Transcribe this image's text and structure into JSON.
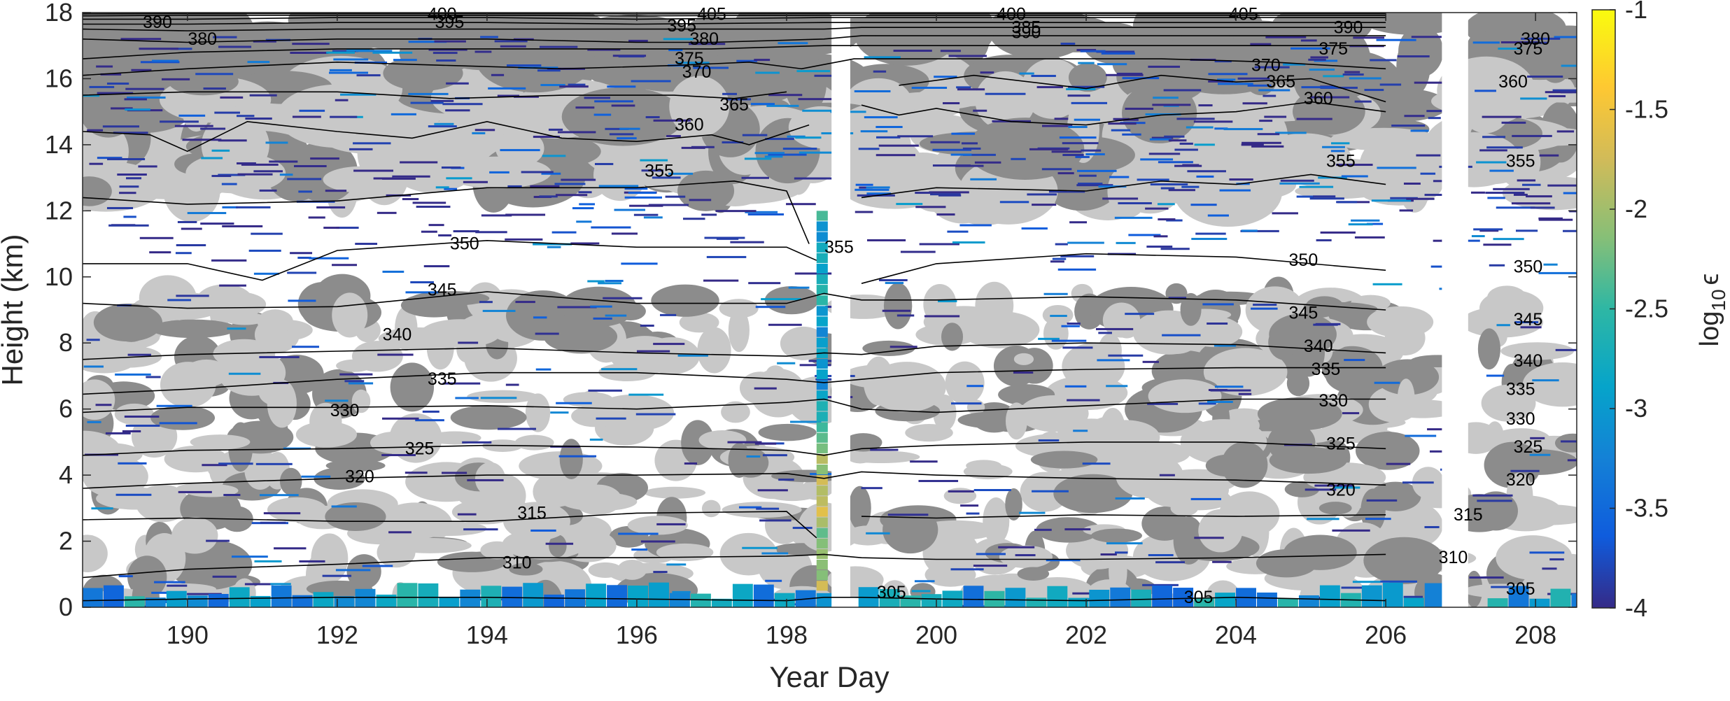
{
  "chart_data": {
    "type": "heatmap",
    "title": "",
    "xlabel": "Year Day",
    "ylabel": "Height (km)",
    "xlim": [
      188.6,
      208.55
    ],
    "ylim": [
      0,
      18
    ],
    "xticks": [
      190,
      192,
      194,
      196,
      198,
      200,
      202,
      204,
      206,
      208
    ],
    "xtick_labels": [
      "190",
      "192",
      "194",
      "196",
      "198",
      "200",
      "202",
      "204",
      "206",
      "208"
    ],
    "yticks": [
      0,
      2,
      4,
      6,
      8,
      10,
      12,
      14,
      16,
      18
    ],
    "ytick_labels": [
      "0",
      "2",
      "4",
      "6",
      "8",
      "10",
      "12",
      "14",
      "16",
      "18"
    ],
    "colorbar": {
      "label_main": "log",
      "label_sub": "10",
      "label_sym": "ϵ",
      "range": [
        -4,
        -1
      ],
      "colormap": "parula",
      "ticks": [
        -1,
        -1.5,
        -2,
        -2.5,
        -3,
        -3.5,
        -4
      ],
      "tick_labels": [
        "-1",
        "-1.5",
        "-2",
        "-2.5",
        "-3",
        "-3.5",
        "-4"
      ]
    },
    "data_gaps": [
      [
        198.6,
        198.85
      ],
      [
        206.75,
        207.1
      ]
    ],
    "cloud_shading": [
      {
        "name": "light",
        "color": "#c8c8c8"
      },
      {
        "name": "dark",
        "color": "#8c8c8c"
      }
    ],
    "contours": [
      {
        "level": 305,
        "label": "305",
        "x": [
          188.6,
          190,
          192,
          194,
          196,
          198,
          198.5,
          199,
          200,
          202,
          204,
          206,
          207,
          208.55
        ],
        "y": [
          0.2,
          0.25,
          0.3,
          0.3,
          0.25,
          0.2,
          0.3,
          0.3,
          0.25,
          0.2,
          0.3,
          0.2,
          0.25,
          0.25
        ],
        "labels_at": [
          [
            199.4,
            0.45
          ],
          [
            203.5,
            0.3
          ],
          [
            207.8,
            0.55
          ]
        ]
      },
      {
        "level": 310,
        "label": "310",
        "x": [
          188.6,
          190,
          192,
          194,
          196,
          198,
          198.5,
          199,
          200,
          202,
          204,
          206,
          207,
          208.55
        ],
        "y": [
          0.9,
          1.15,
          1.3,
          1.5,
          1.5,
          1.55,
          1.6,
          1.5,
          1.45,
          1.45,
          1.5,
          1.6,
          1.3,
          1.85
        ],
        "labels_at": [
          [
            194.4,
            1.35
          ],
          [
            206.9,
            1.5
          ]
        ]
      },
      {
        "level": 315,
        "label": "315",
        "x": [
          188.6,
          190,
          192,
          194,
          196,
          198,
          198.4,
          198.6,
          199,
          200,
          202,
          204,
          206,
          207,
          208.55
        ],
        "y": [
          2.65,
          2.7,
          2.6,
          2.6,
          2.85,
          2.9,
          2.1,
          2.8,
          2.75,
          2.7,
          2.8,
          2.75,
          2.8,
          2.6,
          2.65
        ],
        "labels_at": [
          [
            194.6,
            2.85
          ],
          [
            207.1,
            2.8
          ]
        ]
      },
      {
        "level": 320,
        "label": "320",
        "x": [
          188.6,
          190,
          192,
          194,
          196,
          198,
          198.5,
          199,
          200,
          202,
          204,
          206,
          207,
          208.55
        ],
        "y": [
          3.6,
          3.75,
          3.9,
          4.0,
          4.0,
          4.05,
          3.9,
          4.1,
          4.0,
          3.9,
          3.85,
          3.7,
          3.75,
          3.65
        ],
        "labels_at": [
          [
            192.3,
            3.95
          ],
          [
            205.4,
            3.55
          ],
          [
            207.8,
            3.85
          ]
        ]
      },
      {
        "level": 325,
        "label": "325",
        "x": [
          188.6,
          190,
          192,
          194,
          196,
          198,
          198.5,
          199,
          200,
          202,
          204,
          206,
          207,
          208.55
        ],
        "y": [
          4.6,
          4.75,
          4.8,
          4.9,
          4.85,
          4.75,
          4.6,
          4.8,
          4.9,
          5.0,
          5.0,
          4.8,
          4.6,
          4.55
        ],
        "labels_at": [
          [
            193.1,
            4.8
          ],
          [
            205.4,
            4.95
          ],
          [
            207.9,
            4.85
          ]
        ]
      },
      {
        "level": 330,
        "label": "330",
        "x": [
          188.6,
          190,
          192,
          194,
          196,
          198,
          198.5,
          199,
          200,
          202,
          204,
          206,
          207,
          208.55
        ],
        "y": [
          5.9,
          6.05,
          6.05,
          6.1,
          6.0,
          6.2,
          6.3,
          6.0,
          5.9,
          6.1,
          6.3,
          6.3,
          5.8,
          5.6
        ],
        "labels_at": [
          [
            192.1,
            5.95
          ],
          [
            205.3,
            6.25
          ],
          [
            207.8,
            5.7
          ]
        ]
      },
      {
        "level": 335,
        "label": "335",
        "x": [
          188.6,
          190,
          192,
          194,
          196,
          198,
          198.5,
          199,
          200,
          202,
          204,
          206,
          207,
          208.55
        ],
        "y": [
          6.45,
          6.6,
          6.9,
          7.1,
          7.1,
          6.9,
          6.8,
          6.9,
          7.1,
          7.2,
          7.25,
          7.25,
          6.6,
          6.7
        ],
        "labels_at": [
          [
            193.4,
            6.9
          ],
          [
            205.2,
            7.2
          ],
          [
            207.8,
            6.6
          ]
        ]
      },
      {
        "level": 340,
        "label": "340",
        "x": [
          188.6,
          190,
          192,
          194,
          196,
          198,
          198.5,
          199,
          200,
          202,
          204,
          206,
          207,
          208.55
        ],
        "y": [
          7.5,
          7.65,
          7.75,
          7.85,
          7.7,
          7.6,
          7.7,
          7.65,
          7.9,
          8.0,
          7.95,
          7.7,
          7.4,
          7.45
        ],
        "labels_at": [
          [
            192.8,
            8.25
          ],
          [
            205.1,
            7.9
          ],
          [
            207.9,
            7.45
          ]
        ]
      },
      {
        "level": 345,
        "label": "345",
        "x": [
          188.6,
          190,
          192,
          194,
          196,
          198,
          198.5,
          199,
          200,
          202,
          204,
          206,
          207,
          208.55
        ],
        "y": [
          9.2,
          9.05,
          9.1,
          9.55,
          9.2,
          9.2,
          9.5,
          9.3,
          9.3,
          9.4,
          9.3,
          9.0,
          8.6,
          8.65
        ],
        "labels_at": [
          [
            193.4,
            9.6
          ],
          [
            204.9,
            8.9
          ],
          [
            207.9,
            8.7
          ]
        ]
      },
      {
        "level": 350,
        "label": "350",
        "x": [
          188.6,
          190,
          191,
          192,
          194,
          196,
          198,
          198.4,
          198.8,
          199,
          200,
          202,
          204,
          206,
          207,
          208.55
        ],
        "y": [
          10.4,
          10.4,
          9.9,
          10.8,
          11.1,
          10.9,
          10.9,
          10.5,
          9.9,
          9.8,
          10.4,
          10.7,
          10.6,
          10.2,
          10.3,
          10.1
        ],
        "labels_at": [
          [
            193.7,
            11.0
          ],
          [
            204.9,
            10.5
          ],
          [
            207.9,
            10.3
          ]
        ]
      },
      {
        "level": 355,
        "label": "355",
        "x": [
          188.6,
          190,
          192,
          194,
          196,
          197.3,
          198.0,
          198.3,
          198.7,
          199,
          200,
          202,
          203,
          204,
          205,
          206,
          207,
          208.55
        ],
        "y": [
          12.4,
          12.2,
          12.3,
          12.7,
          12.7,
          12.9,
          12.6,
          11.0,
          10.9,
          12.4,
          12.7,
          12.6,
          12.9,
          12.8,
          13.1,
          12.8,
          12.4,
          12.3
        ],
        "labels_at": [
          [
            196.3,
            13.2
          ],
          [
            198.7,
            10.9
          ],
          [
            205.4,
            13.5
          ],
          [
            207.8,
            13.5
          ]
        ]
      },
      {
        "level": 360,
        "label": "360",
        "x": [
          188.6,
          189.5,
          190,
          190.8,
          192,
          193,
          194,
          195,
          196,
          197,
          197.5,
          198.3,
          198.8,
          199,
          199.5,
          200,
          201,
          202,
          203,
          204,
          205,
          206,
          207,
          208.55
        ],
        "y": [
          14.4,
          14.3,
          13.8,
          14.7,
          14.4,
          14.2,
          14.7,
          14.2,
          14.1,
          14.3,
          14.0,
          14.6,
          15.3,
          15.2,
          14.9,
          15.1,
          14.7,
          14.6,
          14.9,
          15.0,
          15.3,
          15.0,
          15.4,
          15.3
        ],
        "labels_at": [
          [
            196.7,
            14.6
          ],
          [
            205.1,
            15.4
          ],
          [
            207.7,
            15.9
          ]
        ]
      },
      {
        "level": 365,
        "label": "365",
        "x": [
          188.6,
          190,
          192,
          193.5,
          195,
          196.5,
          197.3,
          198.0,
          198.8,
          199.5,
          200.5,
          202,
          203,
          204,
          205,
          206,
          207,
          208.55
        ],
        "y": [
          15.5,
          15.6,
          15.6,
          15.4,
          15.5,
          15.5,
          15.4,
          15.6,
          16.1,
          15.8,
          16.1,
          15.7,
          16.1,
          15.9,
          16.0,
          15.3,
          16.0,
          15.9
        ],
        "labels_at": [
          [
            197.3,
            15.2
          ],
          [
            204.6,
            15.9
          ]
        ]
      },
      {
        "level": 370,
        "label": "370",
        "x": [
          188.6,
          190,
          192,
          193.5,
          195,
          196.5,
          197.5,
          198.2,
          198.9,
          200,
          201.5,
          203,
          204.5,
          206,
          207,
          208.55
        ],
        "y": [
          16.1,
          16.3,
          16.5,
          16.4,
          16.3,
          16.4,
          16.5,
          16.3,
          16.6,
          16.6,
          16.6,
          16.6,
          16.5,
          16.3,
          16.6,
          16.7
        ],
        "labels_at": [
          [
            196.8,
            16.2
          ],
          [
            204.4,
            16.4
          ]
        ]
      },
      {
        "level": 375,
        "label": "375",
        "x": [
          188.6,
          190,
          192,
          194,
          196,
          197,
          198.5,
          199,
          200,
          202,
          204,
          206,
          207,
          208.55
        ],
        "y": [
          16.6,
          16.8,
          16.9,
          16.9,
          16.9,
          16.9,
          17.0,
          17.0,
          17.0,
          17.0,
          17.0,
          17.0,
          16.9,
          17.0
        ],
        "labels_at": [
          [
            196.7,
            16.6
          ],
          [
            205.3,
            16.9
          ],
          [
            207.9,
            16.9
          ]
        ]
      },
      {
        "level": 380,
        "label": "380",
        "x": [
          188.6,
          190,
          192,
          194,
          196,
          197,
          198.5,
          199,
          200,
          202,
          204,
          206,
          207,
          208.55
        ],
        "y": [
          17.2,
          17.1,
          17.2,
          17.2,
          17.1,
          17.1,
          17.2,
          17.3,
          17.3,
          17.3,
          17.3,
          17.3,
          17.2,
          17.2
        ],
        "labels_at": [
          [
            190.2,
            17.2
          ],
          [
            196.9,
            17.2
          ],
          [
            208.0,
            17.2
          ]
        ]
      },
      {
        "level": 385,
        "label": "385",
        "x": [
          188.6,
          190,
          192,
          194,
          196,
          198.5,
          199,
          200,
          202,
          204,
          206,
          207,
          208.55
        ],
        "y": [
          17.5,
          17.45,
          17.5,
          17.5,
          17.5,
          17.5,
          17.55,
          17.55,
          17.55,
          17.55,
          17.55,
          17.5,
          17.5
        ],
        "labels_at": [
          [
            201.2,
            17.55
          ]
        ]
      },
      {
        "level": 390,
        "label": "390",
        "x": [
          188.6,
          190,
          192,
          194,
          196,
          198.5,
          199,
          200,
          202,
          204,
          206,
          207,
          208.55
        ],
        "y": [
          17.65,
          17.65,
          17.7,
          17.7,
          17.65,
          17.7,
          17.7,
          17.7,
          17.7,
          17.7,
          17.7,
          17.7,
          17.7
        ],
        "labels_at": [
          [
            189.6,
            17.7
          ],
          [
            201.2,
            17.4
          ],
          [
            205.5,
            17.55
          ]
        ]
      },
      {
        "level": 395,
        "label": "395",
        "x": [
          188.6,
          190,
          192,
          194,
          196,
          198.5,
          199,
          200,
          202,
          204,
          206,
          207,
          208.55
        ],
        "y": [
          17.8,
          17.8,
          17.85,
          17.85,
          17.8,
          17.85,
          17.85,
          17.85,
          17.85,
          17.85,
          17.85,
          17.85,
          17.85
        ],
        "labels_at": [
          [
            193.5,
            17.7
          ],
          [
            196.6,
            17.6
          ]
        ]
      },
      {
        "level": 400,
        "label": "400",
        "x": [
          188.6,
          190,
          192,
          194,
          196,
          198.5,
          199,
          200,
          202,
          204,
          206,
          207,
          208.55
        ],
        "y": [
          17.9,
          17.92,
          17.92,
          17.92,
          17.9,
          17.92,
          17.92,
          17.92,
          17.92,
          17.92,
          17.92,
          17.92,
          17.92
        ],
        "labels_at": [
          [
            201.0,
            17.95
          ],
          [
            193.4,
            17.95
          ]
        ]
      },
      {
        "level": 405,
        "label": "405",
        "x": [
          188.6,
          190,
          192,
          194,
          196,
          198.5,
          199,
          200,
          202,
          204,
          206,
          207,
          208.55
        ],
        "y": [
          17.96,
          17.97,
          17.97,
          17.97,
          17.96,
          17.97,
          17.97,
          17.97,
          17.97,
          17.97,
          17.97,
          17.97,
          17.97
        ],
        "labels_at": [
          [
            197.0,
            17.95
          ],
          [
            204.1,
            17.95
          ]
        ]
      }
    ]
  }
}
